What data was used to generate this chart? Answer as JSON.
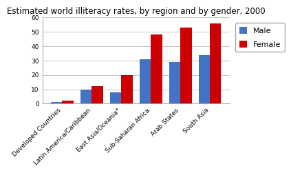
{
  "title": "Estimated world illiteracy rates, by region and by gender, 2000",
  "categories": [
    "Developed Countries",
    "Latin America/Caribbean",
    "East Asia/Oceania*",
    "Sub-Saharan Africa",
    "Arab States",
    "South Asia"
  ],
  "male_values": [
    1,
    10,
    8,
    31,
    29,
    34
  ],
  "female_values": [
    2,
    12,
    20,
    48,
    53,
    56
  ],
  "male_color": "#4472C4",
  "female_color": "#CC0000",
  "ylim": [
    0,
    60
  ],
  "yticks": [
    0,
    10,
    20,
    30,
    40,
    50,
    60
  ],
  "legend_labels": [
    "Male",
    "Female"
  ],
  "background_color": "#FFFFFF",
  "bar_width": 0.38,
  "title_fontsize": 8.5,
  "tick_fontsize": 6.5,
  "legend_fontsize": 8
}
